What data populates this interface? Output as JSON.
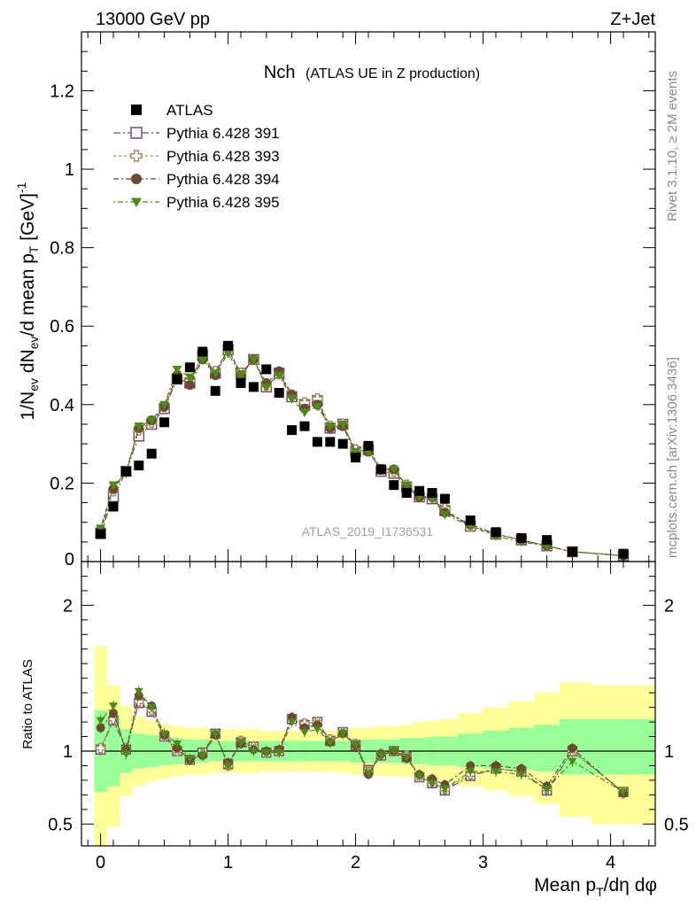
{
  "header": {
    "left": "13000 GeV pp",
    "right": "Z+Jet"
  },
  "plot_title": {
    "main": "Nch",
    "sub": "(ATLAS UE in Z production)"
  },
  "watermark": "ATLAS_2019_I1736531",
  "side_text": {
    "top": "Rivet 3.1.10, ≥ 2M events",
    "bottom": "mcplots.cern.ch [arXiv:1306.3436]"
  },
  "axes": {
    "ylabel_top": "1/N_ev dN_ev/d mean p_T [GeV]^-1",
    "ylabel_bottom": "Ratio to ATLAS",
    "xlabel": "Mean p_T/dη dφ"
  },
  "colors": {
    "data": "#000000",
    "s391": "#7b4a63",
    "s393": "#9a8a5a",
    "s394": "#6b4a2e",
    "s395": "#4d8a1a",
    "band_inner": "#99ff99",
    "band_outer": "#ffff99"
  },
  "chart_data": [
    {
      "type": "scatter",
      "panel": "main",
      "xlim": [
        -0.15,
        4.35
      ],
      "ylim": [
        0,
        1.35
      ],
      "yticks": [
        0.2,
        0.4,
        0.6,
        0.8,
        1,
        1.2
      ],
      "ytick_labels": [
        "0.2",
        "0.4",
        "0.6",
        "0.8",
        "1",
        "1.2"
      ],
      "bottom_label": "0",
      "legend_position": "top-left",
      "x": [
        0.0,
        0.1,
        0.2,
        0.3,
        0.4,
        0.5,
        0.6,
        0.7,
        0.8,
        0.9,
        1.0,
        1.1,
        1.2,
        1.3,
        1.4,
        1.5,
        1.6,
        1.7,
        1.8,
        1.9,
        2.0,
        2.1,
        2.2,
        2.3,
        2.4,
        2.5,
        2.6,
        2.7,
        2.9,
        3.1,
        3.3,
        3.5,
        3.7,
        4.1
      ],
      "series": [
        {
          "name": "ATLAS",
          "marker": "filled-square",
          "values": [
            0.07,
            0.14,
            0.23,
            0.245,
            0.275,
            0.355,
            0.465,
            0.495,
            0.535,
            0.435,
            0.55,
            0.455,
            0.445,
            0.49,
            0.43,
            0.335,
            0.345,
            0.305,
            0.305,
            0.3,
            0.265,
            0.295,
            0.235,
            0.195,
            0.175,
            0.18,
            0.175,
            0.16,
            0.105,
            0.075,
            0.06,
            0.055,
            0.025,
            0.02
          ]
        },
        {
          "name": "Pythia 6.428 391",
          "marker": "open-square",
          "values": [
            0.072,
            0.165,
            0.23,
            0.32,
            0.35,
            0.39,
            0.465,
            0.455,
            0.525,
            0.48,
            0.54,
            0.48,
            0.515,
            0.445,
            0.48,
            0.42,
            0.4,
            0.41,
            0.34,
            0.35,
            0.28,
            0.285,
            0.23,
            0.225,
            0.19,
            0.165,
            0.16,
            0.13,
            0.09,
            0.07,
            0.055,
            0.04,
            0.025,
            0.015
          ]
        },
        {
          "name": "Pythia 6.428 393",
          "marker": "open-cross",
          "values": [
            0.075,
            0.18,
            0.23,
            0.335,
            0.355,
            0.395,
            0.47,
            0.46,
            0.525,
            0.485,
            0.54,
            0.48,
            0.515,
            0.45,
            0.48,
            0.425,
            0.405,
            0.415,
            0.345,
            0.35,
            0.285,
            0.29,
            0.235,
            0.23,
            0.195,
            0.17,
            0.165,
            0.135,
            0.09,
            0.07,
            0.055,
            0.04,
            0.025,
            0.015
          ]
        },
        {
          "name": "Pythia 6.428 394",
          "marker": "filled-circle",
          "values": [
            0.08,
            0.185,
            0.23,
            0.34,
            0.36,
            0.395,
            0.475,
            0.45,
            0.515,
            0.475,
            0.545,
            0.475,
            0.515,
            0.455,
            0.485,
            0.425,
            0.39,
            0.4,
            0.34,
            0.345,
            0.275,
            0.28,
            0.235,
            0.235,
            0.19,
            0.165,
            0.165,
            0.125,
            0.095,
            0.07,
            0.055,
            0.04,
            0.025,
            0.015
          ]
        },
        {
          "name": "Pythia 6.428 395",
          "marker": "filled-triangle-down",
          "values": [
            0.085,
            0.195,
            0.225,
            0.345,
            0.36,
            0.4,
            0.49,
            0.47,
            0.515,
            0.48,
            0.53,
            0.475,
            0.515,
            0.445,
            0.475,
            0.415,
            0.38,
            0.395,
            0.345,
            0.35,
            0.28,
            0.28,
            0.235,
            0.235,
            0.195,
            0.165,
            0.16,
            0.12,
            0.09,
            0.065,
            0.05,
            0.04,
            0.025,
            0.015
          ]
        }
      ]
    },
    {
      "type": "scatter",
      "panel": "ratio",
      "xlim": [
        -0.15,
        4.35
      ],
      "ylim": [
        0.35,
        2.3
      ],
      "yticks": [
        0.5,
        1,
        2
      ],
      "ytick_labels": [
        "0.5",
        "1",
        "2"
      ],
      "xticks": [
        0,
        1,
        2,
        3,
        4
      ],
      "xtick_labels": [
        "0",
        "1",
        "2",
        "3",
        "4"
      ],
      "reference_line": 1,
      "x": [
        0.0,
        0.1,
        0.2,
        0.3,
        0.4,
        0.5,
        0.6,
        0.7,
        0.8,
        0.9,
        1.0,
        1.1,
        1.2,
        1.3,
        1.4,
        1.5,
        1.6,
        1.7,
        1.8,
        1.9,
        2.0,
        2.1,
        2.2,
        2.3,
        2.4,
        2.5,
        2.6,
        2.7,
        2.9,
        3.1,
        3.3,
        3.5,
        3.7,
        4.1
      ],
      "band_edges": [
        -0.05,
        0.05,
        0.15,
        0.25,
        0.35,
        0.45,
        0.55,
        0.65,
        0.75,
        0.85,
        0.95,
        1.05,
        1.15,
        1.25,
        1.35,
        1.45,
        1.55,
        1.65,
        1.75,
        1.85,
        1.95,
        2.05,
        2.15,
        2.25,
        2.35,
        2.45,
        2.55,
        2.65,
        2.8,
        3.0,
        3.2,
        3.4,
        3.6,
        3.85,
        4.35
      ],
      "band_inner": [
        [
          0.72,
          1.28
        ],
        [
          0.76,
          1.24
        ],
        [
          0.85,
          1.15
        ],
        [
          0.88,
          1.12
        ],
        [
          0.89,
          1.11
        ],
        [
          0.9,
          1.1
        ],
        [
          0.91,
          1.09
        ],
        [
          0.92,
          1.08
        ],
        [
          0.92,
          1.08
        ],
        [
          0.93,
          1.07
        ],
        [
          0.93,
          1.07
        ],
        [
          0.93,
          1.07
        ],
        [
          0.93,
          1.07
        ],
        [
          0.93,
          1.07
        ],
        [
          0.93,
          1.07
        ],
        [
          0.93,
          1.07
        ],
        [
          0.93,
          1.07
        ],
        [
          0.93,
          1.07
        ],
        [
          0.93,
          1.07
        ],
        [
          0.93,
          1.07
        ],
        [
          0.92,
          1.08
        ],
        [
          0.92,
          1.08
        ],
        [
          0.92,
          1.08
        ],
        [
          0.92,
          1.08
        ],
        [
          0.91,
          1.09
        ],
        [
          0.91,
          1.09
        ],
        [
          0.9,
          1.1
        ],
        [
          0.9,
          1.1
        ],
        [
          0.89,
          1.12
        ],
        [
          0.88,
          1.14
        ],
        [
          0.87,
          1.16
        ],
        [
          0.86,
          1.18
        ],
        [
          0.84,
          1.22
        ],
        [
          0.84,
          1.22
        ]
      ],
      "band_outer": [
        [
          0.3,
          1.72
        ],
        [
          0.48,
          1.45
        ],
        [
          0.69,
          1.31
        ],
        [
          0.76,
          1.24
        ],
        [
          0.79,
          1.21
        ],
        [
          0.81,
          1.19
        ],
        [
          0.83,
          1.17
        ],
        [
          0.84,
          1.16
        ],
        [
          0.84,
          1.16
        ],
        [
          0.85,
          1.15
        ],
        [
          0.85,
          1.15
        ],
        [
          0.85,
          1.15
        ],
        [
          0.85,
          1.15
        ],
        [
          0.86,
          1.14
        ],
        [
          0.86,
          1.14
        ],
        [
          0.86,
          1.14
        ],
        [
          0.86,
          1.14
        ],
        [
          0.86,
          1.14
        ],
        [
          0.86,
          1.14
        ],
        [
          0.85,
          1.15
        ],
        [
          0.84,
          1.16
        ],
        [
          0.84,
          1.16
        ],
        [
          0.83,
          1.17
        ],
        [
          0.83,
          1.17
        ],
        [
          0.82,
          1.18
        ],
        [
          0.81,
          1.2
        ],
        [
          0.8,
          1.21
        ],
        [
          0.79,
          1.22
        ],
        [
          0.76,
          1.26
        ],
        [
          0.73,
          1.3
        ],
        [
          0.69,
          1.34
        ],
        [
          0.64,
          1.4
        ],
        [
          0.55,
          1.47
        ],
        [
          0.5,
          1.45
        ]
      ],
      "series": [
        {
          "name": "Pythia 6.428 391",
          "marker": "open-square",
          "values": [
            1.01,
            1.21,
            1.01,
            1.33,
            1.27,
            1.1,
            1.0,
            0.94,
            0.99,
            1.12,
            0.91,
            1.06,
            1.03,
            0.99,
            1.0,
            1.22,
            1.18,
            1.2,
            1.07,
            1.13,
            1.04,
            0.87,
            0.97,
            1.0,
            0.96,
            0.82,
            0.78,
            0.73,
            0.83,
            0.88,
            0.86,
            0.73,
            1.0,
            0.72
          ]
        },
        {
          "name": "Pythia 6.428 393",
          "marker": "open-cross",
          "values": [
            1.02,
            1.22,
            1.02,
            1.34,
            1.28,
            1.1,
            1.0,
            0.94,
            0.98,
            1.12,
            0.9,
            1.07,
            1.03,
            0.99,
            1.0,
            1.23,
            1.19,
            1.2,
            1.08,
            1.13,
            1.05,
            0.86,
            0.98,
            1.0,
            0.97,
            0.82,
            0.79,
            0.74,
            0.84,
            0.88,
            0.86,
            0.74,
            1.0,
            0.72
          ]
        },
        {
          "name": "Pythia 6.428 394",
          "marker": "filled-circle",
          "values": [
            1.16,
            1.26,
            1.01,
            1.38,
            1.31,
            1.11,
            1.02,
            0.94,
            0.97,
            1.11,
            0.92,
            1.05,
            1.01,
            1.0,
            1.01,
            1.23,
            1.16,
            1.18,
            1.06,
            1.12,
            1.04,
            0.84,
            0.98,
            1.0,
            0.95,
            0.84,
            0.81,
            0.77,
            0.9,
            0.9,
            0.88,
            0.76,
            1.02,
            0.71
          ]
        },
        {
          "name": "Pythia 6.428 395",
          "marker": "filled-triangle-down",
          "values": [
            1.21,
            1.31,
            0.98,
            1.41,
            1.3,
            1.12,
            1.05,
            0.95,
            0.97,
            1.12,
            0.9,
            1.06,
            1.0,
            0.99,
            0.99,
            1.2,
            1.13,
            1.15,
            1.06,
            1.12,
            1.04,
            0.85,
            0.97,
            1.0,
            0.96,
            0.83,
            0.78,
            0.74,
            0.86,
            0.86,
            0.84,
            0.74,
            0.93,
            0.72
          ]
        }
      ]
    }
  ]
}
